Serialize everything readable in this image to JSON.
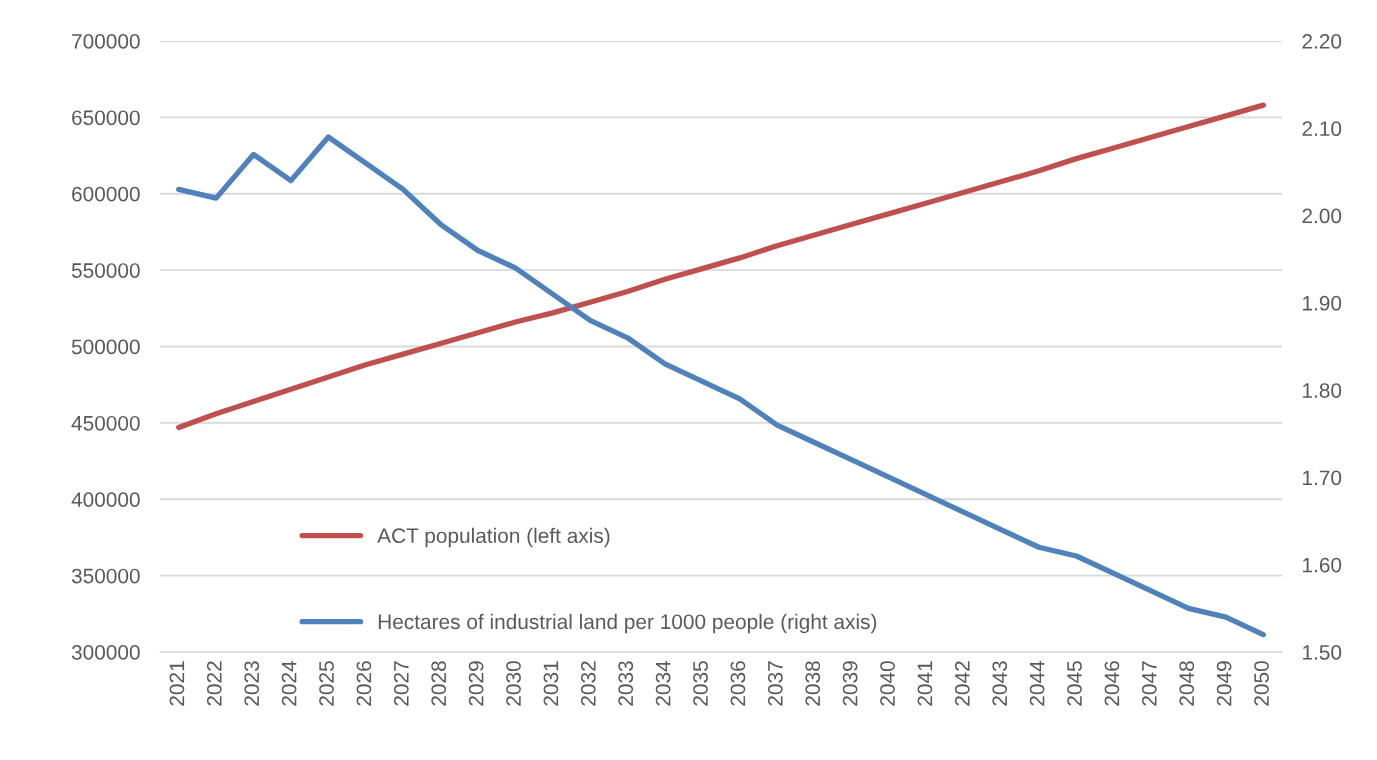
{
  "chart_data": {
    "type": "line",
    "categories": [
      "2021",
      "2022",
      "2023",
      "2024",
      "2025",
      "2026",
      "2027",
      "2028",
      "2029",
      "2030",
      "2031",
      "2032",
      "2033",
      "2034",
      "2035",
      "2036",
      "2037",
      "2038",
      "2039",
      "2040",
      "2041",
      "2042",
      "2043",
      "2044",
      "2045",
      "2046",
      "2047",
      "2048",
      "2049",
      "2050"
    ],
    "series": [
      {
        "name": "ACT population (left axis)",
        "color": "#c0504d",
        "axis": "y",
        "values": [
          447000,
          456000,
          464000,
          472000,
          480000,
          488000,
          495000,
          502000,
          509000,
          516000,
          522000,
          529000,
          536000,
          544000,
          551000,
          558000,
          566000,
          573000,
          580000,
          587000,
          594000,
          601000,
          608000,
          615000,
          623000,
          630000,
          637000,
          644000,
          651000,
          658000
        ]
      },
      {
        "name": "Hectares of industrial land per 1000 people (right axis)",
        "color": "#4f81bd",
        "axis": "y2",
        "values": [
          2.03,
          2.02,
          2.07,
          2.04,
          2.09,
          2.06,
          2.03,
          1.99,
          1.96,
          1.94,
          1.91,
          1.88,
          1.86,
          1.83,
          1.81,
          1.79,
          1.76,
          1.74,
          1.72,
          1.7,
          1.68,
          1.66,
          1.64,
          1.62,
          1.61,
          1.59,
          1.57,
          1.55,
          1.54,
          1.52
        ]
      }
    ],
    "ylim": [
      300000,
      700000
    ],
    "yticks": [
      300000,
      350000,
      400000,
      450000,
      500000,
      550000,
      600000,
      650000,
      700000
    ],
    "y2lim": [
      1.5,
      2.2
    ],
    "y2ticks": [
      {
        "value": 1.5,
        "label": "1.50"
      },
      {
        "value": 1.6,
        "label": "1.60"
      },
      {
        "value": 1.7,
        "label": "1.70"
      },
      {
        "value": 1.8,
        "label": "1.80"
      },
      {
        "value": 1.9,
        "label": "1.90"
      },
      {
        "value": 2.0,
        "label": "2.00"
      },
      {
        "value": 2.1,
        "label": "2.10"
      },
      {
        "value": 2.2,
        "label": "2.20"
      }
    ],
    "grid": "y",
    "legend": "bottom left",
    "marker": "none",
    "line_style": "solid"
  }
}
